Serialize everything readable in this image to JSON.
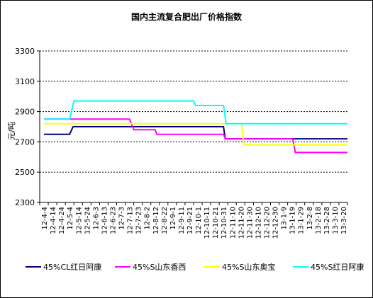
{
  "chart_data": {
    "type": "line",
    "title": "国内主流复合肥出厂价格指数",
    "xlabel": "",
    "ylabel": "元/吨",
    "ylim": [
      2300,
      3300
    ],
    "yticks": [
      2300,
      2500,
      2700,
      2900,
      3100,
      3300
    ],
    "grid": "horizontal dashed",
    "legend_position": "bottom",
    "x_tick_labels": [
      "12-4-4",
      "12-4-14",
      "12-4-24",
      "12-5-4",
      "12-5-14",
      "12-5-24",
      "12-6-3",
      "12-6-13",
      "12-6-23",
      "12-7-3",
      "12-7-13",
      "12-7-23",
      "12-8-2",
      "12-8-12",
      "12-8-22",
      "12-9-1",
      "12-9-11",
      "12-9-21",
      "12-10-1",
      "12-10-11",
      "12-10-21",
      "12-10-31",
      "12-11-10",
      "12-11-20",
      "12-11-30",
      "12-12-10",
      "12-12-20",
      "12-12-30",
      "13-1-9",
      "13-1-19",
      "13-1-29",
      "13-2-8",
      "13-2-18",
      "13-2-28",
      "13-3-10",
      "13-3-20"
    ],
    "series": [
      {
        "name": "45%CL红日阿康",
        "color": "#000080",
        "points": [
          [
            0,
            2750
          ],
          [
            3,
            2750
          ],
          [
            3.4,
            2800
          ],
          [
            21,
            2800
          ],
          [
            21.2,
            2720
          ],
          [
            35.5,
            2720
          ]
        ]
      },
      {
        "name": "45%S山东香西",
        "color": "#ff00ff",
        "points": [
          [
            0,
            2850
          ],
          [
            10,
            2850
          ],
          [
            10.5,
            2780
          ],
          [
            13,
            2780
          ],
          [
            13.2,
            2750
          ],
          [
            21,
            2750
          ],
          [
            21.2,
            2720
          ],
          [
            29.1,
            2720
          ],
          [
            29.4,
            2630
          ],
          [
            35.5,
            2630
          ]
        ]
      },
      {
        "name": "45%S山东奥宝",
        "color": "#ffff00",
        "points": [
          [
            0,
            2820
          ],
          [
            23.1,
            2820
          ],
          [
            23.4,
            2680
          ],
          [
            35.5,
            2680
          ]
        ]
      },
      {
        "name": "45%S红日阿康",
        "color": "#00ffff",
        "points": [
          [
            0,
            2850
          ],
          [
            3,
            2850
          ],
          [
            3.5,
            2970
          ],
          [
            17.5,
            2970
          ],
          [
            17.7,
            2940
          ],
          [
            21,
            2940
          ],
          [
            21.3,
            2820
          ],
          [
            35.5,
            2820
          ]
        ]
      }
    ]
  }
}
